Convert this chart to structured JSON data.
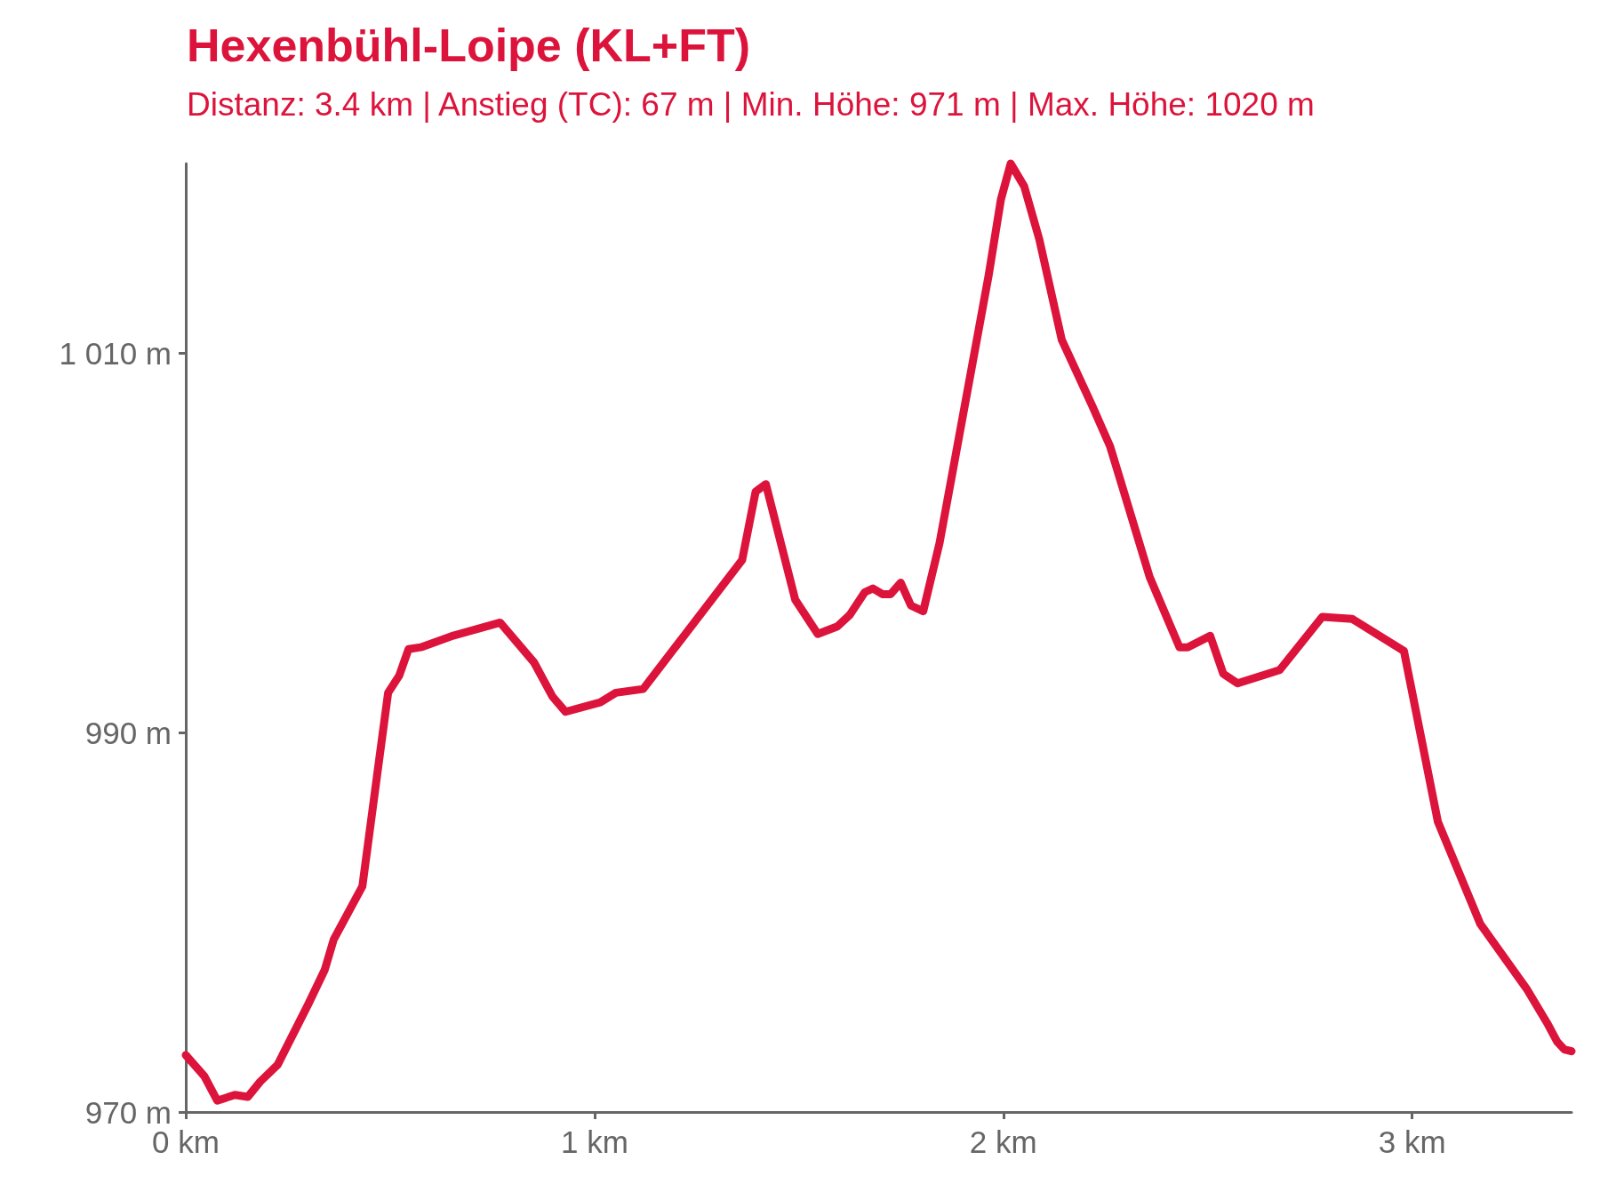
{
  "chart_data": {
    "type": "line",
    "title": "Hexenbühl-Loipe (KL+FT)",
    "subtitle": "Distanz: 3.4 km | Anstieg (TC): 67 m | Min. Höhe: 971 m | Max. Höhe: 1020 m",
    "series": [
      {
        "color": "#dc143c",
        "x": [
          0,
          0.045,
          0.077,
          0.12,
          0.152,
          0.182,
          0.225,
          0.3,
          0.34,
          0.362,
          0.432,
          0.472,
          0.495,
          0.522,
          0.545,
          0.575,
          0.652,
          0.769,
          0.852,
          0.897,
          0.929,
          1.014,
          1.052,
          1.119,
          1.361,
          1.394,
          1.419,
          1.491,
          1.546,
          1.594,
          1.624,
          1.661,
          1.681,
          1.704,
          1.724,
          1.749,
          1.774,
          1.804,
          1.844,
          1.964,
          1.994,
          2.018,
          2.051,
          2.088,
          2.143,
          2.218,
          2.261,
          2.358,
          2.431,
          2.451,
          2.506,
          2.538,
          2.573,
          2.676,
          2.78,
          2.853,
          2.98,
          3.063,
          3.167,
          3.28,
          3.33,
          3.355,
          3.372,
          3.39
        ],
        "values": [
          973.0,
          971.9,
          970.6,
          970.9,
          970.8,
          971.6,
          972.5,
          975.7,
          977.5,
          979.1,
          981.9,
          988.4,
          992.1,
          993.0,
          994.4,
          994.5,
          995.1,
          995.8,
          993.7,
          991.9,
          991.1,
          991.6,
          992.1,
          992.3,
          999.1,
          1002.7,
          1003.1,
          997.0,
          995.2,
          995.6,
          996.2,
          997.4,
          997.6,
          997.3,
          997.3,
          997.9,
          996.7,
          996.4,
          1000.0,
          1014.1,
          1018.1,
          1020.0,
          1018.8,
          1016.0,
          1010.7,
          1007.2,
          1005.1,
          998.2,
          994.5,
          994.5,
          995.1,
          993.1,
          992.6,
          993.3,
          996.1,
          996.0,
          994.3,
          985.3,
          979.9,
          976.5,
          974.7,
          973.7,
          973.3,
          973.2
        ]
      }
    ],
    "xlim": [
      0,
      3.39
    ],
    "xticks": [
      {
        "value": 0,
        "label": "0 km"
      },
      {
        "value": 1,
        "label": "1 km"
      },
      {
        "value": 2,
        "label": "2 km"
      },
      {
        "value": 3,
        "label": "3 km"
      }
    ],
    "ylim": [
      970,
      1020
    ],
    "yticks": [
      {
        "value": 970,
        "label": "970 m"
      },
      {
        "value": 990,
        "label": "990 m"
      },
      {
        "value": 1010,
        "label": "1 010 m"
      }
    ],
    "grid": false,
    "line_style": "solid"
  }
}
